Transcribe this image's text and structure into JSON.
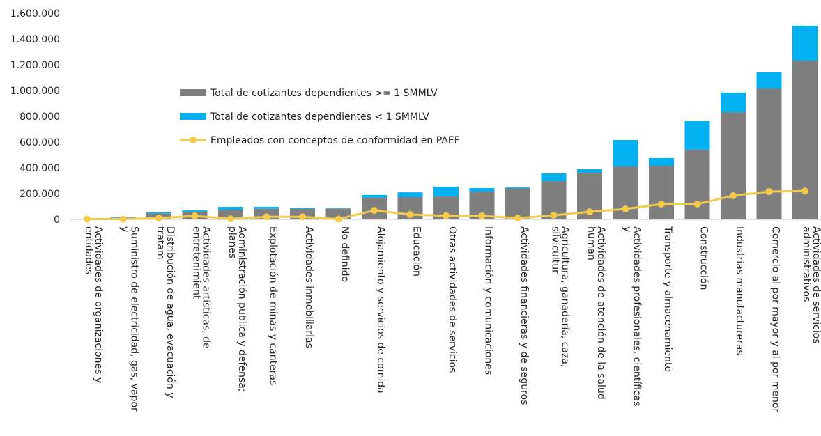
{
  "chart_data": {
    "type": "bar+line",
    "categories": [
      "Actividades de organizaciones y entidades",
      "Suministro de electricidad, gas, vapor y",
      "Distribución de agua, evacuación y tratam",
      "Actividades artísticas, de entretenimient",
      "Administración publica y defensa; planes",
      "Explotación de minas y canteras",
      "Actividades inmobiliarias",
      "No definido",
      "Alojamiento y servicios de comida",
      "Educación",
      "Otras actividades de servicios",
      "Información y comunicaciones",
      "Actividades financieras y de seguros",
      "Agricultura, ganadería, caza, silvicultur",
      "Actividades de atención de la salud human",
      "Actividades profesionales, científicas y",
      "Transporte y almacenamiento",
      "Construcción",
      "Industrias manufactureras",
      "Comercio al por mayor y al por menor",
      "Actividades de servicios administrativos"
    ],
    "series": [
      {
        "name": "Total de cotizantes dependientes >= 1 SMMLV",
        "color": "#7f7f7f",
        "kind": "bar",
        "values": [
          1000,
          12000,
          45000,
          60000,
          75000,
          82000,
          85000,
          83000,
          168000,
          173000,
          178000,
          216000,
          238000,
          297000,
          362000,
          411000,
          416000,
          541000,
          832000,
          1016000,
          1232000
        ]
      },
      {
        "name": "Total de cotizantes dependientes < 1 SMMLV",
        "color": "#00b0f0",
        "kind": "bar",
        "values": [
          500,
          4000,
          9000,
          10000,
          22000,
          15000,
          7000,
          3000,
          22000,
          37000,
          76000,
          27000,
          10000,
          60000,
          27000,
          205000,
          60000,
          221000,
          152000,
          125000,
          271000
        ]
      },
      {
        "name": "Empleados con conceptos de conformidad en PAEF",
        "color": "#f5c94a",
        "kind": "line",
        "values": [
          2000,
          3000,
          10000,
          27000,
          5000,
          20000,
          20000,
          2000,
          70000,
          38000,
          28000,
          28000,
          10000,
          32000,
          59000,
          81000,
          119000,
          119000,
          184000,
          216000,
          220000
        ]
      }
    ],
    "ylim": [
      0,
      1600000
    ],
    "yticks": [
      0,
      {
        "value": 200000,
        "label": "200.000"
      },
      {
        "value": 400000,
        "label": "400.000"
      },
      {
        "value": 600000,
        "label": "600.000"
      },
      {
        "value": 800000,
        "label": "800.000"
      },
      {
        "value": 1000000,
        "label": "1.000.000"
      },
      {
        "value": 1200000,
        "label": "1.200.000"
      },
      {
        "value": 1400000,
        "label": "1.400.000"
      },
      {
        "value": 1600000,
        "label": "1.600.000"
      }
    ],
    "legend": "upper left"
  }
}
